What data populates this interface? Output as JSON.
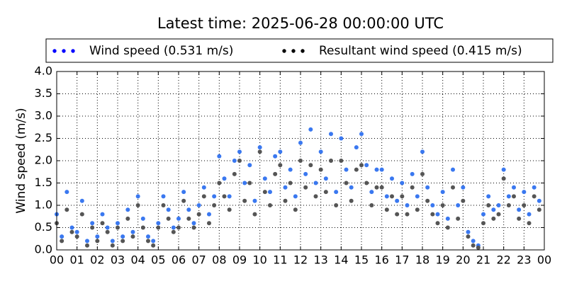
{
  "chart_data": {
    "type": "scatter",
    "title": "Latest time: 2025-06-28 00:00:00 UTC",
    "y_label": "Wind speed (m/s)",
    "x": [
      0,
      0.25,
      0.5,
      0.75,
      1,
      1.25,
      1.5,
      1.75,
      2,
      2.25,
      2.5,
      2.75,
      3,
      3.25,
      3.5,
      3.75,
      4,
      4.25,
      4.5,
      4.75,
      5,
      5.25,
      5.5,
      5.75,
      6,
      6.25,
      6.5,
      6.75,
      7,
      7.25,
      7.5,
      7.75,
      8,
      8.25,
      8.5,
      8.75,
      9,
      9.25,
      9.5,
      9.75,
      10,
      10.25,
      10.5,
      10.75,
      11,
      11.25,
      11.5,
      11.75,
      12,
      12.25,
      12.5,
      12.75,
      13,
      13.25,
      13.5,
      13.75,
      14,
      14.25,
      14.5,
      14.75,
      15,
      15.25,
      15.5,
      15.75,
      16,
      16.25,
      16.5,
      16.75,
      17,
      17.25,
      17.5,
      17.75,
      18,
      18.25,
      18.5,
      18.75,
      19,
      19.25,
      19.5,
      19.75,
      20,
      20.25,
      20.5,
      20.75,
      21,
      21.25,
      21.5,
      21.75,
      22,
      22.25,
      22.5,
      22.75,
      23,
      23.25,
      23.5,
      23.75
    ],
    "series": [
      {
        "name": "Wind speed (0.531 m/s)",
        "color": "#0000ff",
        "point_color": "#3a78f0",
        "values": [
          0.8,
          0.3,
          1.3,
          0.5,
          0.4,
          1.1,
          0.2,
          0.6,
          0.3,
          0.8,
          0.5,
          0.2,
          0.6,
          0.3,
          0.9,
          0.4,
          1.2,
          0.7,
          0.3,
          0.2,
          0.6,
          1.2,
          0.9,
          0.5,
          0.7,
          1.3,
          0.9,
          0.6,
          1.0,
          1.4,
          0.8,
          1.2,
          2.1,
          1.6,
          1.2,
          2.0,
          2.2,
          1.5,
          1.9,
          1.1,
          2.3,
          1.6,
          1.3,
          2.1,
          2.2,
          1.4,
          1.8,
          1.2,
          2.4,
          1.7,
          2.7,
          1.5,
          2.2,
          1.6,
          2.6,
          1.3,
          2.5,
          1.8,
          1.4,
          2.3,
          2.6,
          1.9,
          1.3,
          1.8,
          1.8,
          1.2,
          1.6,
          1.1,
          1.5,
          1.0,
          1.7,
          1.2,
          2.2,
          1.4,
          1.0,
          0.8,
          1.3,
          0.7,
          1.8,
          1.0,
          1.4,
          0.4,
          0.2,
          0.1,
          0.8,
          1.2,
          0.9,
          1.0,
          1.8,
          1.2,
          1.4,
          0.9,
          1.3,
          0.8,
          1.4,
          1.1
        ]
      },
      {
        "name": "Resultant wind speed (0.415 m/s)",
        "color": "#000000",
        "point_color": "#555555",
        "values": [
          0.6,
          0.2,
          0.9,
          0.4,
          0.3,
          0.8,
          0.1,
          0.5,
          0.2,
          0.6,
          0.4,
          0.1,
          0.5,
          0.2,
          0.7,
          0.3,
          1.0,
          0.5,
          0.2,
          0.1,
          0.5,
          1.0,
          0.7,
          0.4,
          0.5,
          1.1,
          0.7,
          0.5,
          0.8,
          1.2,
          0.6,
          1.0,
          1.5,
          1.2,
          0.9,
          1.7,
          2.0,
          1.1,
          1.5,
          0.8,
          2.2,
          1.3,
          1.0,
          1.7,
          1.9,
          1.1,
          1.5,
          0.9,
          2.0,
          1.4,
          1.9,
          1.2,
          1.8,
          1.3,
          2.0,
          1.0,
          2.0,
          1.5,
          1.1,
          1.8,
          1.9,
          1.5,
          1.0,
          1.4,
          1.4,
          0.9,
          1.2,
          0.8,
          1.2,
          0.8,
          1.4,
          0.9,
          1.7,
          1.1,
          0.8,
          0.6,
          1.0,
          0.5,
          1.4,
          0.7,
          1.1,
          0.3,
          0.1,
          0.05,
          0.6,
          1.0,
          0.7,
          0.8,
          1.6,
          1.0,
          1.2,
          0.7,
          1.0,
          0.6,
          1.2,
          0.9
        ]
      }
    ],
    "xlim": [
      0,
      24
    ],
    "xticks": [
      {
        "value": 0,
        "label": "00"
      },
      {
        "value": 1,
        "label": "01"
      },
      {
        "value": 2,
        "label": "02"
      },
      {
        "value": 3,
        "label": "03"
      },
      {
        "value": 4,
        "label": "04"
      },
      {
        "value": 5,
        "label": "05"
      },
      {
        "value": 6,
        "label": "06"
      },
      {
        "value": 7,
        "label": "07"
      },
      {
        "value": 8,
        "label": "08"
      },
      {
        "value": 9,
        "label": "09"
      },
      {
        "value": 10,
        "label": "10"
      },
      {
        "value": 11,
        "label": "11"
      },
      {
        "value": 12,
        "label": "12"
      },
      {
        "value": 13,
        "label": "13"
      },
      {
        "value": 14,
        "label": "14"
      },
      {
        "value": 15,
        "label": "15"
      },
      {
        "value": 16,
        "label": "16"
      },
      {
        "value": 17,
        "label": "17"
      },
      {
        "value": 18,
        "label": "18"
      },
      {
        "value": 19,
        "label": "19"
      },
      {
        "value": 20,
        "label": "20"
      },
      {
        "value": 21,
        "label": "21"
      },
      {
        "value": 22,
        "label": "22"
      },
      {
        "value": 23,
        "label": "23"
      },
      {
        "value": 24,
        "label": "00"
      }
    ],
    "ylim": [
      0,
      4
    ],
    "yticks": [
      {
        "value": 0,
        "label": "0.0"
      },
      {
        "value": 0.5,
        "label": "0.5"
      },
      {
        "value": 1,
        "label": "1.0"
      },
      {
        "value": 1.5,
        "label": "1.5"
      },
      {
        "value": 2,
        "label": "2.0"
      },
      {
        "value": 2.5,
        "label": "2.5"
      },
      {
        "value": 3,
        "label": "3.0"
      },
      {
        "value": 3.5,
        "label": "3.5"
      },
      {
        "value": 4,
        "label": "4.0"
      }
    ],
    "grid": true
  }
}
